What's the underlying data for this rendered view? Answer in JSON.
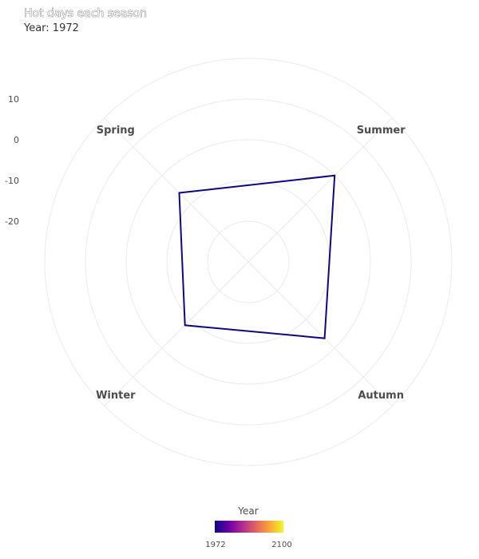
{
  "chart_data": {
    "type": "radar",
    "title": "Hot days each season",
    "subtitle": "Year: 1972",
    "categories": [
      "Spring",
      "Summer",
      "Autumn",
      "Winter"
    ],
    "series": [
      {
        "year": 1972,
        "color": "#0d0887",
        "values": [
          -6,
          0,
          -3.5,
          -8
        ]
      }
    ],
    "r_axis": {
      "range": [
        -30,
        20
      ],
      "ticks": [
        10,
        0,
        -10,
        -20
      ],
      "tick_labels": [
        "10",
        "0",
        "-10",
        "-20"
      ]
    },
    "grid": true,
    "legend": {
      "title": "Year",
      "min_label": "1972",
      "max_label": "2100",
      "colors": [
        "#0d0887",
        "#6a00a8",
        "#b12a90",
        "#e16462",
        "#fca636",
        "#f0f921"
      ],
      "placement": "bottom"
    }
  }
}
